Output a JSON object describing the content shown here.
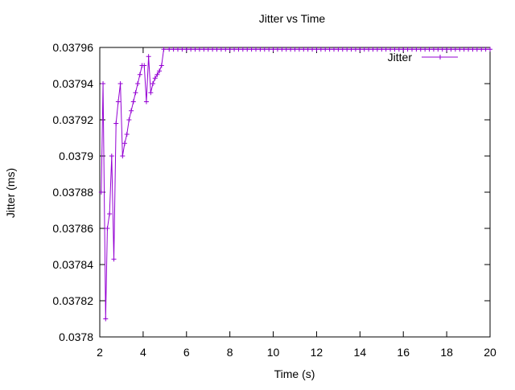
{
  "chart_data": {
    "type": "line",
    "title": "Jitter vs Time",
    "x_label": "Time (s)",
    "y_label": "Jitter (ms)",
    "xlim": [
      2,
      20
    ],
    "xticks": [
      2,
      4,
      6,
      8,
      10,
      12,
      14,
      16,
      18,
      20
    ],
    "ylim": [
      0.0378,
      0.03796
    ],
    "yticks": [
      0.0378,
      0.03782,
      0.03784,
      0.03786,
      0.03788,
      0.0379,
      0.03792,
      0.03794,
      0.03796
    ],
    "grid": false,
    "legend_position": "top-right",
    "x": [
      2.07,
      2.15,
      2.27,
      2.35,
      2.45,
      2.55,
      2.65,
      2.75,
      2.85,
      2.95,
      3.05,
      3.15,
      3.25,
      3.35,
      3.45,
      3.55,
      3.65,
      3.75,
      3.85,
      3.95,
      4.05,
      4.15,
      4.25,
      4.35,
      4.45,
      4.55,
      4.65,
      4.75,
      4.85,
      4.95,
      5.2,
      5.4,
      5.6,
      5.8,
      6.0,
      6.2,
      6.4,
      6.6,
      6.8,
      7.0,
      7.2,
      7.4,
      7.6,
      7.8,
      8.0,
      8.2,
      8.4,
      8.6,
      8.8,
      9.0,
      9.2,
      9.4,
      9.6,
      9.8,
      10.0,
      10.2,
      10.4,
      10.6,
      10.8,
      11.0,
      11.2,
      11.4,
      11.6,
      11.8,
      12.0,
      12.2,
      12.4,
      12.6,
      12.8,
      13.0,
      13.2,
      13.4,
      13.6,
      13.8,
      14.0,
      14.2,
      14.4,
      14.6,
      14.8,
      15.0,
      15.2,
      15.4,
      15.6,
      15.8,
      16.0,
      16.2,
      16.4,
      16.6,
      16.8,
      17.0,
      17.2,
      17.4,
      17.6,
      17.8,
      18.0,
      18.2,
      18.4,
      18.6,
      18.8,
      19.0,
      19.2,
      19.4,
      19.6,
      19.8,
      20.0
    ],
    "series": [
      {
        "name": "Jitter",
        "color": "#9400d3",
        "values": [
          0.03788,
          0.03794,
          0.03781,
          0.03786,
          0.037868,
          0.0379,
          0.037843,
          0.037918,
          0.03793,
          0.03794,
          0.0379,
          0.037907,
          0.037912,
          0.03792,
          0.037925,
          0.03793,
          0.037935,
          0.03794,
          0.037945,
          0.03795,
          0.03795,
          0.03793,
          0.037955,
          0.037935,
          0.03794,
          0.037943,
          0.037945,
          0.037947,
          0.03795,
          0.037959,
          0.037959,
          0.037959,
          0.037959,
          0.037959,
          0.037959,
          0.037959,
          0.037959,
          0.037959,
          0.037959,
          0.037959,
          0.037959,
          0.037959,
          0.037959,
          0.037959,
          0.037959,
          0.037959,
          0.037959,
          0.037959,
          0.037959,
          0.037959,
          0.037959,
          0.037959,
          0.037959,
          0.037959,
          0.037959,
          0.037959,
          0.037959,
          0.037959,
          0.037959,
          0.037959,
          0.037959,
          0.037959,
          0.037959,
          0.037959,
          0.037959,
          0.037959,
          0.037959,
          0.037959,
          0.037959,
          0.037959,
          0.037959,
          0.037959,
          0.037959,
          0.037959,
          0.037959,
          0.037959,
          0.037959,
          0.037959,
          0.037959,
          0.037959,
          0.037959,
          0.037959,
          0.037959,
          0.037959,
          0.037959,
          0.037959,
          0.037959,
          0.037959,
          0.037959,
          0.037959,
          0.037959,
          0.037959,
          0.037959,
          0.037959,
          0.037959,
          0.037959,
          0.037959,
          0.037959,
          0.037959,
          0.037959,
          0.037959,
          0.037959,
          0.037959,
          0.037959,
          0.037959
        ]
      }
    ]
  }
}
